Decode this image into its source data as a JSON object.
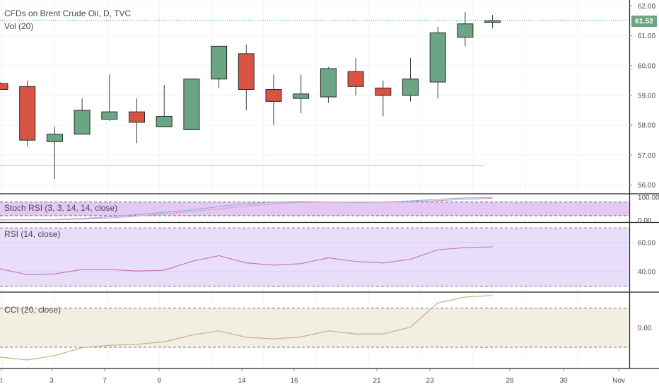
{
  "header": {
    "symbol_title": "CFDs on Brent Crude Oil, D, TVC",
    "volume_label": "Vol (20)"
  },
  "price_badge": "61.52",
  "panes": {
    "stoch_label": "Stoch RSI (3, 3, 14, 14, close)",
    "rsi_label": "RSI (14, close)",
    "cci_label": "CCI (20, close)"
  },
  "x_axis_labels": [
    "t",
    "3",
    "7",
    "9",
    "14",
    "16",
    "21",
    "23",
    "28",
    "30",
    "Nov"
  ],
  "colors": {
    "up": "#6ba583",
    "down": "#d75442",
    "rsi_line": "#c27bb5",
    "cci_line": "#c9b58a",
    "stoch_k": "#8ab4e0",
    "stoch_d": "#e6a0c0",
    "rsi_band": "#e9defa",
    "cci_band": "#f3eee2",
    "stoch_band": "#e3c8f5",
    "last_price_line": "#2a9a6f",
    "badge": "#6ba583"
  },
  "chart_data": [
    {
      "type": "candlestick",
      "title": "CFDs on Brent Crude Oil, D, TVC",
      "y_ticks": [
        56.0,
        57.0,
        58.0,
        59.0,
        60.0,
        61.0,
        62.0
      ],
      "ylim": [
        55.75,
        62.2
      ],
      "last_price": 61.52,
      "x": [
        "1",
        "2",
        "3",
        "6",
        "7",
        "8",
        "9",
        "10",
        "13",
        "14",
        "15",
        "16",
        "17",
        "20",
        "21",
        "22",
        "23",
        "24",
        "25"
      ],
      "candles": [
        {
          "o": 59.4,
          "h": 59.45,
          "l": 59.2,
          "c": 59.2
        },
        {
          "o": 59.3,
          "h": 59.5,
          "l": 57.3,
          "c": 57.5
        },
        {
          "o": 57.45,
          "h": 57.95,
          "l": 56.2,
          "c": 57.7
        },
        {
          "o": 57.7,
          "h": 58.9,
          "l": 57.7,
          "c": 58.5
        },
        {
          "o": 58.2,
          "h": 59.7,
          "l": 58.15,
          "c": 58.45
        },
        {
          "o": 58.45,
          "h": 58.9,
          "l": 57.4,
          "c": 58.1
        },
        {
          "o": 57.95,
          "h": 59.35,
          "l": 57.95,
          "c": 58.3
        },
        {
          "o": 57.85,
          "h": 59.55,
          "l": 57.85,
          "c": 59.55
        },
        {
          "o": 59.55,
          "h": 60.65,
          "l": 59.25,
          "c": 60.65
        },
        {
          "o": 60.4,
          "h": 60.7,
          "l": 58.5,
          "c": 59.2
        },
        {
          "o": 59.2,
          "h": 59.7,
          "l": 58.0,
          "c": 58.8
        },
        {
          "o": 58.9,
          "h": 59.7,
          "l": 58.4,
          "c": 59.05
        },
        {
          "o": 58.95,
          "h": 59.95,
          "l": 58.75,
          "c": 59.9
        },
        {
          "o": 59.8,
          "h": 60.25,
          "l": 59.0,
          "c": 59.3
        },
        {
          "o": 59.25,
          "h": 59.5,
          "l": 58.3,
          "c": 59.0
        },
        {
          "o": 59.0,
          "h": 60.25,
          "l": 58.8,
          "c": 59.55
        },
        {
          "o": 59.45,
          "h": 61.3,
          "l": 58.9,
          "c": 61.1
        },
        {
          "o": 60.95,
          "h": 61.8,
          "l": 60.65,
          "c": 61.4
        },
        {
          "o": 61.45,
          "h": 61.7,
          "l": 61.25,
          "c": 61.5
        }
      ]
    },
    {
      "type": "line",
      "title": "Stoch RSI (3, 3, 14, 14, close)",
      "y_ticks": [
        0.0,
        100.0
      ],
      "ylim": [
        -5,
        110
      ],
      "series": [
        {
          "values": [
            2,
            2,
            3,
            8,
            15,
            25,
            35,
            45,
            60,
            72,
            80,
            82,
            80,
            78,
            80,
            85,
            92,
            98,
            100
          ]
        },
        {
          "values": [
            1,
            2,
            2,
            5,
            10,
            18,
            28,
            38,
            50,
            62,
            72,
            78,
            80,
            80,
            80,
            82,
            86,
            92,
            96
          ]
        }
      ],
      "bands": [
        20,
        80
      ]
    },
    {
      "type": "line",
      "title": "RSI (14, close)",
      "y_ticks": [
        40.0,
        60.0
      ],
      "ylim": [
        27,
        73
      ],
      "series": [
        {
          "values": [
            42,
            38,
            38.5,
            41.5,
            41.5,
            40.5,
            41,
            47,
            51,
            46,
            44.5,
            45.5,
            49.5,
            47,
            46,
            48.5,
            55,
            56.5,
            57
          ]
        }
      ],
      "bands": [
        30,
        70
      ]
    },
    {
      "type": "line",
      "title": "CCI (20, close)",
      "y_ticks": [
        0.0
      ],
      "ylim": [
        -205,
        175
      ],
      "series": [
        {
          "values": [
            -150,
            -165,
            -143,
            -102,
            -90,
            -85,
            -72,
            -38,
            -16,
            -49,
            -57,
            -47,
            -16,
            -32,
            -32,
            3,
            127,
            157,
            165
          ]
        }
      ],
      "bands": [
        -100,
        100
      ]
    }
  ]
}
